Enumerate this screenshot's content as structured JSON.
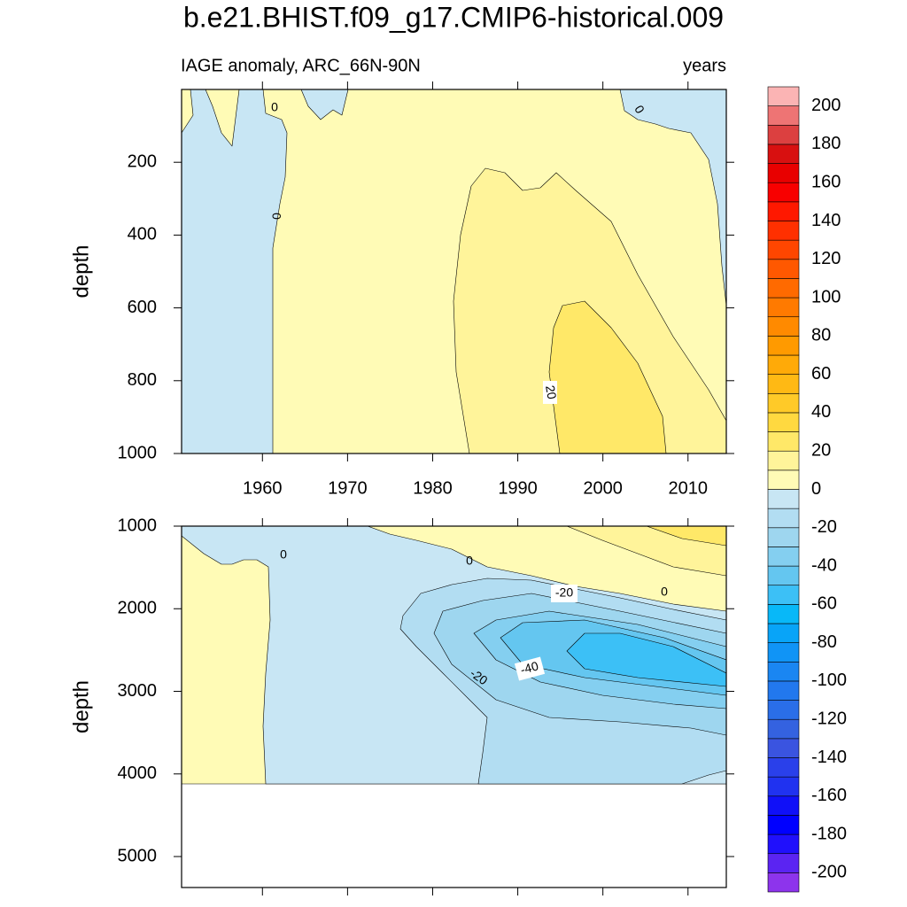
{
  "title": "b.e21.BHIST.f09_g17.CMIP6-historical.009",
  "chart_data": [
    {
      "type": "contour",
      "subtitle_left": "IAGE anomaly, ARC_66N-90N",
      "subtitle_right": "years",
      "ylabel": "depth",
      "xlim": [
        1950.5,
        2014.5
      ],
      "xticks": [
        1960,
        1970,
        1980,
        1990,
        2000,
        2010
      ],
      "ylim": [
        0,
        1000
      ],
      "yticks": [
        200,
        400,
        600,
        800,
        1000
      ],
      "y_reversed": true,
      "contour_labels": [
        0,
        0,
        0,
        20
      ]
    },
    {
      "type": "contour",
      "ylabel": "depth",
      "xlim": [
        1950.5,
        2014.5
      ],
      "xticks": [
        1960,
        1970,
        1980,
        1990,
        2000,
        2010
      ],
      "ylim": [
        1000,
        5375
      ],
      "yticks": [
        1000,
        2000,
        3000,
        4000,
        5000
      ],
      "y_reversed": true,
      "contour_labels": [
        0,
        0,
        -20,
        0,
        -40,
        -20
      ]
    }
  ],
  "colorbar": {
    "levels": [
      -200,
      -190,
      -180,
      -170,
      -160,
      -150,
      -140,
      -130,
      -120,
      -110,
      -100,
      -90,
      -80,
      -70,
      -60,
      -50,
      -40,
      -30,
      -20,
      -10,
      0,
      10,
      20,
      30,
      40,
      50,
      60,
      70,
      80,
      90,
      100,
      110,
      120,
      130,
      140,
      150,
      160,
      170,
      180,
      190,
      200
    ],
    "colors": [
      "#8d34ec",
      "#5b24f2",
      "#2010fc",
      "#0000ff",
      "#1010f8",
      "#2032f0",
      "#2a40ea",
      "#3a54e0",
      "#3462e0",
      "#2a6ee8",
      "#2278ee",
      "#1a86f2",
      "#1094f6",
      "#08a4f8",
      "#08b8f8",
      "#3cc0f6",
      "#64c6f0",
      "#84cff0",
      "#9ed6ef",
      "#b2ddf2",
      "#c8e6f4",
      "#fffbb6",
      "#fff49a",
      "#ffe868",
      "#ffd940",
      "#ffca28",
      "#ffb914",
      "#ffaa08",
      "#ff9a00",
      "#ff8a00",
      "#ff7a00",
      "#ff6a00",
      "#ff5800",
      "#ff4600",
      "#ff3000",
      "#ff1800",
      "#f80000",
      "#e80000",
      "#d81010",
      "#dc4040",
      "#ee7474",
      "#fbb4b4"
    ]
  }
}
